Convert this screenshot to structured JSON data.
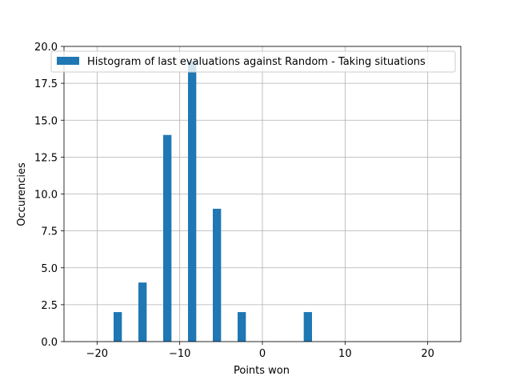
{
  "chart_data": {
    "type": "bar",
    "xlabel": "Points won",
    "ylabel": "Occurencies",
    "xlim": [
      -24,
      24
    ],
    "ylim": [
      0,
      20
    ],
    "xticks": [
      -20,
      -10,
      0,
      10,
      20
    ],
    "xtick_labels": [
      "−20",
      "−10",
      "0",
      "10",
      "20"
    ],
    "yticks": [
      0,
      2.5,
      5,
      7.5,
      10,
      12.5,
      15,
      17.5,
      20
    ],
    "ytick_labels": [
      "0.0",
      "2.5",
      "5.0",
      "7.5",
      "10.0",
      "12.5",
      "15.0",
      "17.5",
      "20.0"
    ],
    "grid": true,
    "legend_position": "upper-right",
    "series": [
      {
        "name": "Histogram of last evaluations against Random - Taking situations",
        "color": "#1f77b4",
        "bin_width": 1.0,
        "x": [
          -17.5,
          -14.5,
          -11.5,
          -8.5,
          -5.5,
          -2.5,
          5.5
        ],
        "values": [
          2,
          4,
          14,
          19,
          9,
          2,
          2
        ]
      }
    ]
  }
}
